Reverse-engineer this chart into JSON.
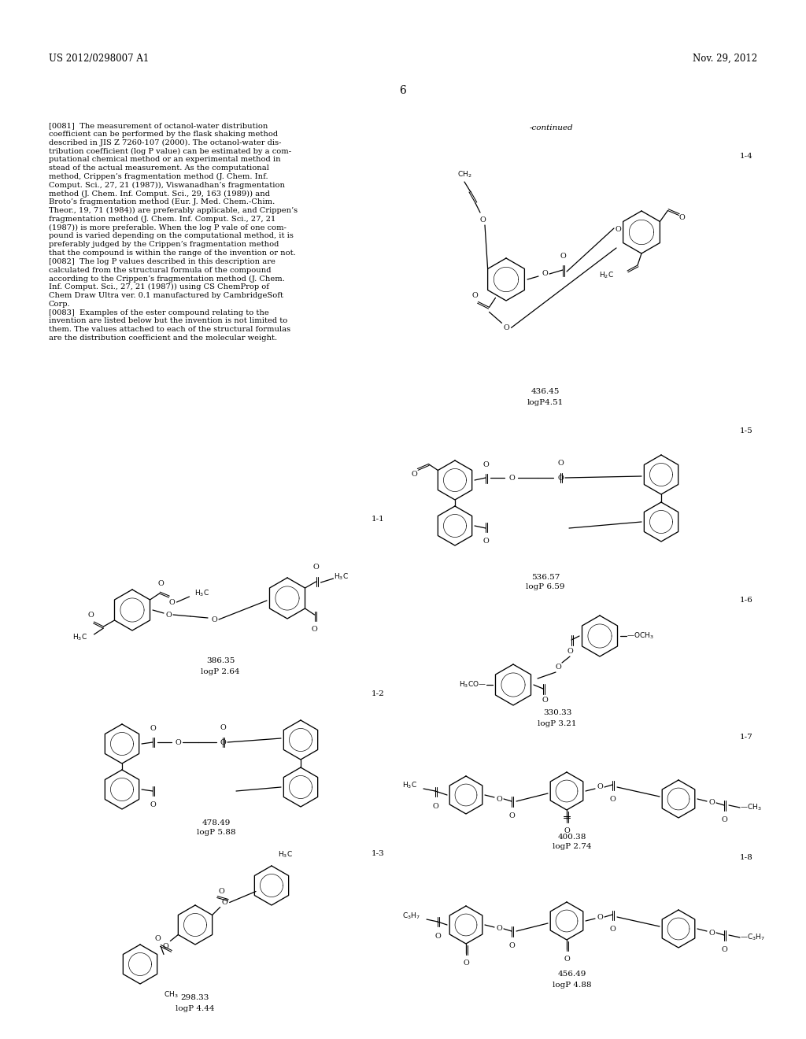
{
  "page_header_left": "US 2012/0298007 A1",
  "page_header_right": "Nov. 29, 2012",
  "page_number": "6",
  "continued_label": "-continued",
  "background_color": "#ffffff",
  "body_paragraphs": [
    "[0081]  The measurement of octanol-water distribution coefficient can be performed by the flask shaking method described in JIS Z 7260-107 (2000). The octanol-water dis- tribution coefficient (log P value) can be estimated by a com- putational chemical method or an experimental method in stead of the actual measurement. As the computational method, Crippen’s fragmentation method (J. Chem. Inf. Comput. Sci., 27, 21 (1987)), Viswanadhan’s fragmentation method (J. Chem. Inf. Comput. Sci., 29, 163 (1989)) and Broto’s fragmentation method (Eur. J. Med. Chem.-Chim. Theor., 19, 71 (1984)) are preferably applicable, and Crippen’s fragmentation method (J. Chem. Inf. Comput. Sci., 27, 21 (1987)) is more preferable. When the log P vale of one com- pound is varied depending on the computational method, it is preferably judged by the Crippen’s fragmentation method that the compound is within the range of the invention or not.",
    "[0082]  The log P values described in this description are calculated from the structural formula of the compound according to the Crippen’s fragmentation method (J. Chem. Inf. Comput. Sci., 27, 21 (1987)) using CS ChemProp of Chem Draw Ultra ver. 0.1 manufactured by CambridgeSoft Corp.",
    "[0083]  Examples of the ester compound relating to the invention are listed below but the invention is not limited to them. The values attached to each of the structural formulas are the distribution coefficient and the molecular weight."
  ],
  "compound_data": [
    {
      "label": "1-1",
      "mw": "386.35",
      "logp": "logP 2.64",
      "col": 0,
      "row": 0
    },
    {
      "label": "1-2",
      "mw": "478.49",
      "logp": "logP 5.88",
      "col": 0,
      "row": 1
    },
    {
      "label": "1-3",
      "mw": "298.33",
      "logp": "logP 4.44",
      "col": 0,
      "row": 2
    },
    {
      "label": "1-4",
      "mw": "436.45",
      "logp": "logP4.51",
      "col": 1,
      "row": 0
    },
    {
      "label": "1-5",
      "mw": "536.57",
      "logp": "logP 6.59",
      "col": 1,
      "row": 1
    },
    {
      "label": "1-6",
      "mw": "330.33",
      "logp": "logP 3.21",
      "col": 1,
      "row": 2
    },
    {
      "label": "1-7",
      "mw": "400.38",
      "logp": "logP 2.74",
      "col": 1,
      "row": 3
    },
    {
      "label": "1-8",
      "mw": "456.49",
      "logp": "logP 4.88",
      "col": 1,
      "row": 4
    }
  ]
}
